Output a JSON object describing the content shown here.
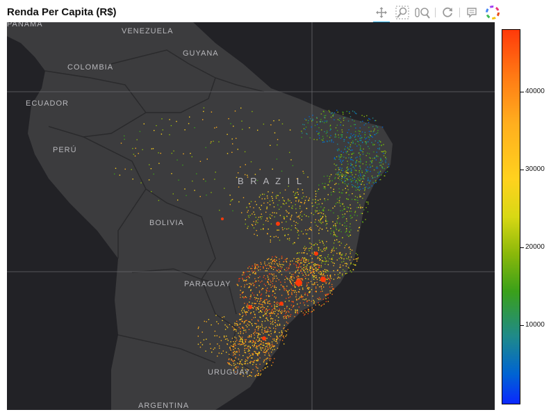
{
  "title": "Renda Per Capita (R$)",
  "toolbar": {
    "tools": [
      "pan-icon",
      "box-zoom-icon",
      "wheel-zoom-icon",
      "reset-icon",
      "hover-icon",
      "bokeh-logo"
    ]
  },
  "map": {
    "labels": {
      "panama": "PANAMA",
      "venezuela": "VENEZUELA",
      "guyana": "GUYANA",
      "colombia": "COLOMBIA",
      "ecuador": "ECUADOR",
      "peru": "PERÚ",
      "brazil": "B R A Z I L",
      "bolivia": "BOLIVIA",
      "paraguay": "PARAGUAY",
      "uruguay": "URUGUAY",
      "argentina": "ARGENTINA"
    },
    "land_color": "#3c3c3e",
    "water_color": "#222226"
  },
  "colorbar": {
    "min": 0,
    "max": 48000,
    "ticks": [
      "10000",
      "20000",
      "30000",
      "40000"
    ],
    "tick_values": [
      10000,
      20000,
      30000,
      40000
    ],
    "colors": [
      "#0a28ff",
      "#1f8a8a",
      "#3aa01a",
      "#d8d814",
      "#ffd21e",
      "#ff7814",
      "#ff3a0a"
    ]
  }
}
